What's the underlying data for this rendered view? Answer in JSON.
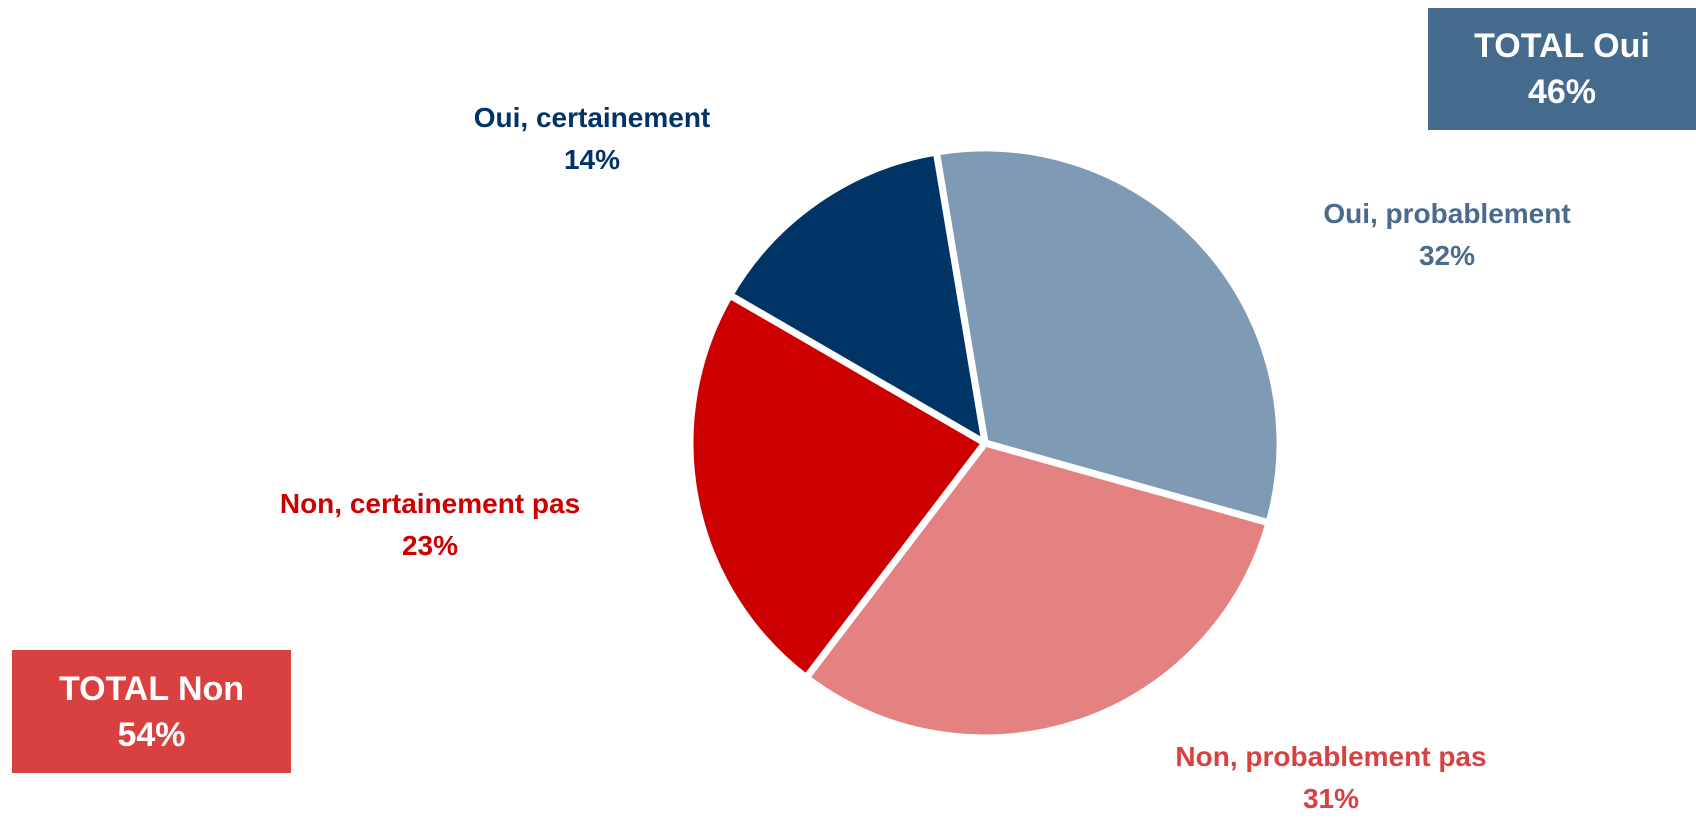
{
  "chart_data": {
    "type": "pie",
    "title": "",
    "slices": [
      {
        "label": "Oui, probablement",
        "value": 32,
        "value_label": "32%",
        "color": "#7F9AB4",
        "label_color": "#4A6B8D"
      },
      {
        "label": "Non, probablement pas",
        "value": 31,
        "value_label": "31%",
        "color": "#E48181",
        "label_color": "#D94141"
      },
      {
        "label": "Non, certainement pas",
        "value": 23,
        "value_label": "23%",
        "color": "#CC0000",
        "label_color": "#CC0000"
      },
      {
        "label": "Oui, certainement",
        "value": 14,
        "value_label": "14%",
        "color": "#003366",
        "label_color": "#003366"
      }
    ],
    "totals": {
      "oui": {
        "label": "TOTAL Oui",
        "value": "46%",
        "color": "#446A8E"
      },
      "non": {
        "label": "TOTAL Non",
        "value": "54%",
        "color": "#D94141"
      }
    }
  }
}
